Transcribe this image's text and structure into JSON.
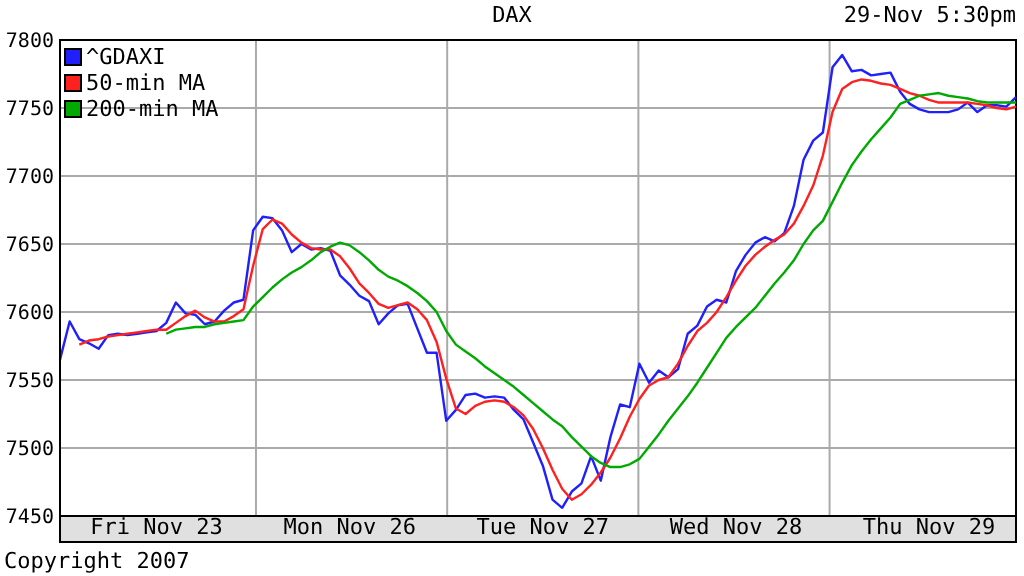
{
  "chart_data": {
    "type": "line",
    "title": "DAX",
    "annotations": [
      "29-Nov 5:30pm",
      "Copyright 2007"
    ],
    "categories": [
      null,
      null,
      null,
      null,
      null,
      null,
      null,
      null,
      null,
      null,
      "Fri Nov 23",
      null,
      null,
      null,
      null,
      null,
      null,
      null,
      null,
      null,
      null,
      null,
      null,
      null,
      null,
      null,
      null,
      null,
      null,
      null,
      "Mon Nov 26",
      null,
      null,
      null,
      null,
      null,
      null,
      null,
      null,
      null,
      null,
      null,
      null,
      null,
      null,
      null,
      null,
      null,
      null,
      null,
      "Tue Nov 27",
      null,
      null,
      null,
      null,
      null,
      null,
      null,
      null,
      null,
      null,
      null,
      null,
      null,
      null,
      null,
      null,
      null,
      null,
      null,
      "Wed Nov 28",
      null,
      null,
      null,
      null,
      null,
      null,
      null,
      null,
      null,
      null,
      null,
      null,
      null,
      null,
      null,
      null,
      null,
      null,
      null,
      "Thu Nov 29",
      null,
      null,
      null,
      null,
      null,
      null,
      null,
      null,
      null
    ],
    "ylim": [
      7450,
      7800
    ],
    "yticks": [
      7450,
      7500,
      7550,
      7600,
      7650,
      7700,
      7750,
      7800
    ],
    "grid": true,
    "legend": "top left",
    "series": [
      {
        "name": "^GDAXI",
        "color": "#2020ff",
        "values": [
          7565,
          7593,
          7580,
          7577,
          7573,
          7583,
          7584,
          7583,
          7584,
          7585,
          7586,
          7592,
          7607,
          7599,
          7598,
          7591,
          7593,
          7601,
          7607,
          7609,
          7660,
          7670,
          7669,
          7660,
          7644,
          7650,
          7646,
          7647,
          7645,
          7627,
          7620,
          7612,
          7608,
          7591,
          7599,
          7605,
          7606,
          7588,
          7570,
          7570,
          7520,
          7528,
          7539,
          7540,
          7537,
          7538,
          7537,
          7528,
          7521,
          7504,
          7487,
          7462,
          7456,
          7468,
          7474,
          7494,
          7476,
          7508,
          7532,
          7530,
          7562,
          7548,
          7557,
          7552,
          7558,
          7584,
          7590,
          7604,
          7609,
          7607,
          7630,
          7642,
          7651,
          7655,
          7652,
          7658,
          7678,
          7712,
          7726,
          7732,
          7780,
          7789,
          7777,
          7778,
          7774,
          7775,
          7776,
          7762,
          7753,
          7749,
          7747,
          7747,
          7747,
          7749,
          7754,
          7747,
          7752,
          7752,
          7751,
          7758
        ]
      },
      {
        "name": "50-min MA",
        "color": "#ff2020",
        "values": [
          null,
          null,
          7576,
          7579,
          7580,
          7582,
          7583,
          7584,
          7585,
          7586,
          7587,
          7587,
          7592,
          7597,
          7601,
          7596,
          7593,
          7593,
          7597,
          7602,
          7634,
          7661,
          7668,
          7665,
          7657,
          7651,
          7647,
          7646,
          7646,
          7641,
          7632,
          7621,
          7614,
          7606,
          7603,
          7605,
          7607,
          7602,
          7594,
          7578,
          7551,
          7529,
          7525,
          7531,
          7534,
          7535,
          7534,
          7530,
          7524,
          7514,
          7500,
          7484,
          7470,
          7462,
          7466,
          7473,
          7482,
          7493,
          7507,
          7523,
          7536,
          7546,
          7550,
          7552,
          7562,
          7575,
          7586,
          7592,
          7600,
          7611,
          7623,
          7634,
          7642,
          7648,
          7653,
          7657,
          7665,
          7678,
          7693,
          7715,
          7747,
          7764,
          7769,
          7771,
          7770,
          7768,
          7767,
          7764,
          7761,
          7759,
          7756,
          7754,
          7754,
          7754,
          7754,
          7753,
          7752,
          7750,
          7749,
          7751
        ]
      },
      {
        "name": "200-min MA",
        "color": "#00aa00",
        "values": [
          null,
          null,
          null,
          null,
          null,
          null,
          null,
          null,
          null,
          null,
          null,
          7584,
          7587,
          7588,
          7589,
          7589,
          7591,
          7592,
          7593,
          7594,
          7604,
          7611,
          7618,
          7624,
          7629,
          7633,
          7638,
          7644,
          7648,
          7651,
          7649,
          7644,
          7638,
          7631,
          7626,
          7623,
          7619,
          7614,
          7608,
          7600,
          7586,
          7576,
          7571,
          7566,
          7560,
          7555,
          7550,
          7545,
          7539,
          7533,
          7527,
          7521,
          7516,
          7508,
          7501,
          7494,
          7489,
          7486,
          7486,
          7488,
          7492,
          7501,
          7510,
          7520,
          7529,
          7538,
          7548,
          7559,
          7570,
          7581,
          7589,
          7596,
          7603,
          7612,
          7621,
          7629,
          7638,
          7650,
          7660,
          7667,
          7681,
          7695,
          7708,
          7718,
          7727,
          7735,
          7743,
          7753,
          7756,
          7759,
          7760,
          7761,
          7759,
          7758,
          7757,
          7755,
          7754,
          7754,
          7754,
          7754
        ]
      }
    ]
  }
}
